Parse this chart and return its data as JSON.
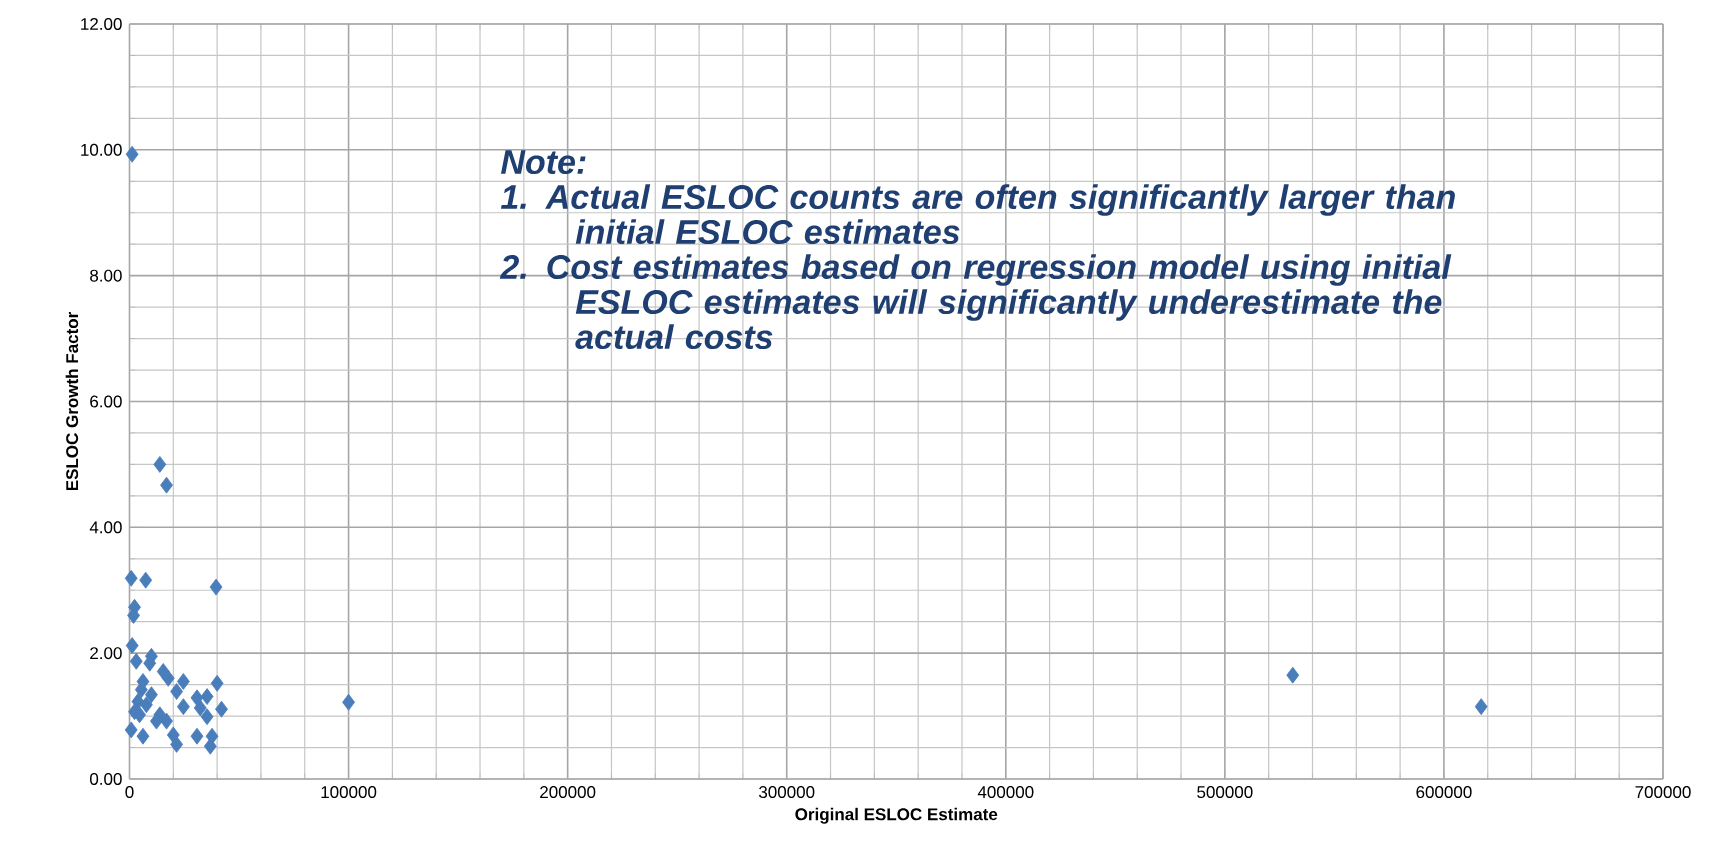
{
  "chart_data": {
    "type": "scatter",
    "xlabel": "Original ESLOC Estimate",
    "ylabel": "ESLOC Growth Factor",
    "x": [
      1200,
      13850,
      16900,
      770,
      7400,
      39500,
      2300,
      1850,
      1230,
      3080,
      10000,
      9230,
      15400,
      17700,
      24600,
      40000,
      6150,
      5400,
      10000,
      21500,
      30800,
      35400,
      3850,
      7700,
      24600,
      32300,
      42000,
      35400,
      2300,
      13850,
      16900,
      770,
      6150,
      20000,
      21500,
      30800,
      37700,
      36900,
      12300,
      4600,
      100000,
      531000,
      617000
    ],
    "values": [
      9.93,
      5.0,
      4.67,
      3.19,
      3.16,
      3.05,
      2.73,
      2.6,
      2.12,
      1.87,
      1.95,
      1.84,
      1.71,
      1.6,
      1.55,
      1.52,
      1.55,
      1.42,
      1.34,
      1.39,
      1.29,
      1.31,
      1.23,
      1.18,
      1.15,
      1.13,
      1.11,
      0.99,
      1.07,
      1.02,
      0.92,
      0.78,
      0.68,
      0.7,
      0.55,
      0.68,
      0.68,
      0.52,
      0.92,
      1.02,
      1.22,
      1.65,
      1.15
    ],
    "color": "#4a7ebb",
    "marker": "diamond",
    "grid": true,
    "xlim": [
      0,
      700000
    ],
    "ylim": [
      0,
      12
    ],
    "xticks": [
      0,
      100000,
      200000,
      300000,
      400000,
      500000,
      600000,
      700000
    ],
    "yticks": [
      {
        "value": 0,
        "label": "0.00"
      },
      {
        "value": 2,
        "label": "2.00"
      },
      {
        "value": 4,
        "label": "4.00"
      },
      {
        "value": 6,
        "label": "6.00"
      },
      {
        "value": 8,
        "label": "8.00"
      },
      {
        "value": 10,
        "label": "10.00"
      },
      {
        "value": 12,
        "label": "12.00"
      }
    ],
    "annotations": [
      "Note:",
      "1.\tActual ESLOC counts are often significantly larger than initial ESLOC estimates",
      "2.\tCost estimates based on regression model using initial ESLOC estimates will significantly underestimate the actual costs"
    ]
  }
}
